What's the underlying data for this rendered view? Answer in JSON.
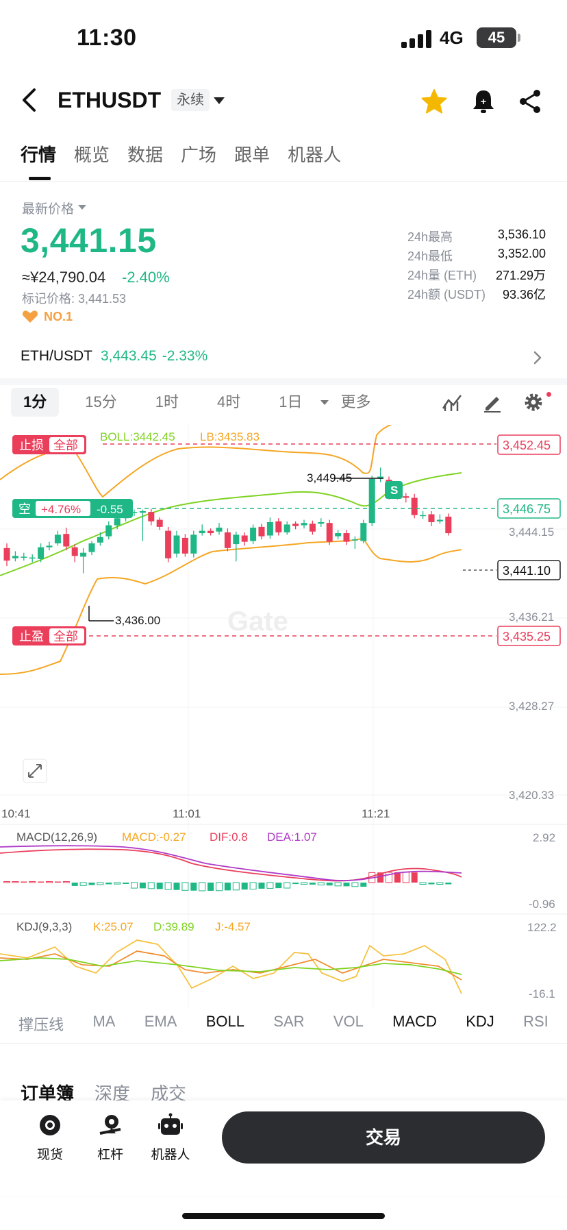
{
  "status_bar": {
    "time": "11:30",
    "network": "4G",
    "battery": "45"
  },
  "header": {
    "title": "ETHUSDT",
    "badge": "永续"
  },
  "tabs": [
    "行情",
    "概览",
    "数据",
    "广场",
    "跟单",
    "机器人"
  ],
  "price": {
    "latest_label": "最新价格",
    "last": "3,441.15",
    "cny": "≈¥24,790.04",
    "change": "-2.40%",
    "mark": "标记价格: 3,441.53",
    "rank": "NO.1"
  },
  "stats": [
    {
      "k": "24h最高",
      "v": "3,536.10"
    },
    {
      "k": "24h最低",
      "v": "3,352.00"
    },
    {
      "k": "24h量 (ETH)",
      "v": "271.29万"
    },
    {
      "k": "24h额 (USDT)",
      "v": "93.36亿"
    }
  ],
  "spot": {
    "name": "ETH/USDT",
    "price": "3,443.45",
    "change": "-2.33%"
  },
  "intervals": [
    "1分",
    "15分",
    "1时",
    "4时",
    "1日",
    "更多"
  ],
  "colors": {
    "up": "#1fb785",
    "down": "#ea3e5b",
    "boll_mid": "#7ed321",
    "boll_band": "#f5a623"
  },
  "chart": {
    "stop_loss_label": "止损",
    "take_profit_label": "止盈",
    "all_label": "全部",
    "boll_label": "BOLL:3442.45",
    "lb_label": "LB:3435.83",
    "short_label": "空",
    "short_pct": "+4.76%",
    "short_pnl": "-0.55",
    "sl_price": "3,452.45",
    "entry_price": "3,446.75",
    "tp_price": "3,435.25",
    "current_price": "3,441.10",
    "high_marker": "3,449.45",
    "low_marker": "3,436.00",
    "sell_marker": "S",
    "y_ticks": [
      "3,444.15",
      "3,436.21",
      "3,428.27",
      "3,420.33"
    ],
    "x_ticks": [
      "10:41",
      "11:01",
      "11:21"
    ],
    "watermark": "Gate"
  },
  "chart_data": {
    "type": "candlestick",
    "ylim": [
      3420.33,
      3452.45
    ],
    "candles": [
      {
        "o": 3439.2,
        "c": 3437.6,
        "h": 3439.8,
        "l": 3436.9
      },
      {
        "o": 3437.9,
        "c": 3438.2,
        "h": 3438.8,
        "l": 3437.5
      },
      {
        "o": 3438.0,
        "c": 3438.1,
        "h": 3438.6,
        "l": 3437.6
      },
      {
        "o": 3437.9,
        "c": 3438.0,
        "h": 3438.4,
        "l": 3437.4
      },
      {
        "o": 3437.8,
        "c": 3439.3,
        "h": 3439.8,
        "l": 3437.4
      },
      {
        "o": 3439.3,
        "c": 3439.5,
        "h": 3440.0,
        "l": 3438.9
      },
      {
        "o": 3439.8,
        "c": 3440.9,
        "h": 3441.4,
        "l": 3439.5
      },
      {
        "o": 3441.0,
        "c": 3439.4,
        "h": 3441.8,
        "l": 3438.9
      },
      {
        "o": 3439.3,
        "c": 3438.2,
        "h": 3439.7,
        "l": 3437.4
      },
      {
        "o": 3438.1,
        "c": 3438.6,
        "h": 3439.2,
        "l": 3436.0
      },
      {
        "o": 3438.7,
        "c": 3439.8,
        "h": 3440.1,
        "l": 3438.3
      },
      {
        "o": 3439.9,
        "c": 3440.6,
        "h": 3441.2,
        "l": 3439.5
      },
      {
        "o": 3440.7,
        "c": 3442.1,
        "h": 3442.6,
        "l": 3440.3
      },
      {
        "o": 3442.1,
        "c": 3443.0,
        "h": 3443.5,
        "l": 3441.6
      },
      {
        "o": 3443.0,
        "c": 3443.6,
        "h": 3444.0,
        "l": 3442.6
      },
      {
        "o": 3443.7,
        "c": 3443.8,
        "h": 3444.1,
        "l": 3443.3
      },
      {
        "o": 3443.7,
        "c": 3443.9,
        "h": 3444.1,
        "l": 3440.1
      },
      {
        "o": 3443.8,
        "c": 3442.6,
        "h": 3444.2,
        "l": 3442.1
      },
      {
        "o": 3442.8,
        "c": 3441.9,
        "h": 3443.1,
        "l": 3441.5
      },
      {
        "o": 3441.4,
        "c": 3437.9,
        "h": 3441.9,
        "l": 3437.4
      },
      {
        "o": 3438.5,
        "c": 3440.8,
        "h": 3441.4,
        "l": 3438.0
      },
      {
        "o": 3440.5,
        "c": 3438.5,
        "h": 3441.0,
        "l": 3438.1
      },
      {
        "o": 3438.5,
        "c": 3440.9,
        "h": 3441.4,
        "l": 3438.0
      },
      {
        "o": 3441.1,
        "c": 3441.4,
        "h": 3442.2,
        "l": 3440.8
      },
      {
        "o": 3441.4,
        "c": 3441.1,
        "h": 3441.7,
        "l": 3440.8
      },
      {
        "o": 3441.3,
        "c": 3441.8,
        "h": 3442.4,
        "l": 3440.9
      },
      {
        "o": 3441.2,
        "c": 3439.2,
        "h": 3441.7,
        "l": 3438.8
      },
      {
        "o": 3439.7,
        "c": 3440.9,
        "h": 3441.3,
        "l": 3437.5
      },
      {
        "o": 3440.8,
        "c": 3440.0,
        "h": 3441.2,
        "l": 3439.5
      },
      {
        "o": 3440.1,
        "c": 3441.8,
        "h": 3442.2,
        "l": 3439.7
      },
      {
        "o": 3441.9,
        "c": 3440.7,
        "h": 3442.3,
        "l": 3440.3
      },
      {
        "o": 3440.8,
        "c": 3442.5,
        "h": 3443.1,
        "l": 3440.4
      },
      {
        "o": 3442.6,
        "c": 3441.2,
        "h": 3443.0,
        "l": 3440.8
      },
      {
        "o": 3441.2,
        "c": 3442.2,
        "h": 3442.6,
        "l": 3440.9
      },
      {
        "o": 3442.3,
        "c": 3442.0,
        "h": 3442.6,
        "l": 3441.6
      },
      {
        "o": 3442.1,
        "c": 3442.4,
        "h": 3442.8,
        "l": 3441.7
      },
      {
        "o": 3442.3,
        "c": 3441.3,
        "h": 3442.7,
        "l": 3440.9
      },
      {
        "o": 3442.3,
        "c": 3442.5,
        "h": 3443.0,
        "l": 3441.9
      },
      {
        "o": 3442.4,
        "c": 3440.0,
        "h": 3442.8,
        "l": 3439.6
      },
      {
        "o": 3440.7,
        "c": 3441.1,
        "h": 3441.5,
        "l": 3440.3
      },
      {
        "o": 3441.1,
        "c": 3440.0,
        "h": 3441.5,
        "l": 3439.6
      },
      {
        "o": 3440.2,
        "c": 3440.3,
        "h": 3440.7,
        "l": 3439.1
      },
      {
        "o": 3440.1,
        "c": 3442.4,
        "h": 3442.8,
        "l": 3439.8
      },
      {
        "o": 3442.4,
        "c": 3448.0,
        "h": 3448.4,
        "l": 3442.0
      },
      {
        "o": 3448.1,
        "c": 3448.3,
        "h": 3449.45,
        "l": 3447.6
      },
      {
        "o": 3447.9,
        "c": 3445.8,
        "h": 3448.3,
        "l": 3445.4
      },
      {
        "o": 3445.9,
        "c": 3445.8,
        "h": 3446.3,
        "l": 3445.4
      },
      {
        "o": 3445.8,
        "c": 3445.6,
        "h": 3446.2,
        "l": 3445.0
      },
      {
        "o": 3445.6,
        "c": 3443.4,
        "h": 3446.1,
        "l": 3443.0
      },
      {
        "o": 3443.3,
        "c": 3443.4,
        "h": 3443.9,
        "l": 3442.9
      },
      {
        "o": 3443.5,
        "c": 3442.5,
        "h": 3443.9,
        "l": 3442.0
      },
      {
        "o": 3442.6,
        "c": 3442.8,
        "h": 3443.5,
        "l": 3442.3
      },
      {
        "o": 3443.2,
        "c": 3441.1,
        "h": 3443.6,
        "l": 3440.8
      }
    ]
  },
  "macd": {
    "label": "MACD(12,26,9)",
    "macd": "MACD:-0.27",
    "dif": "DIF:0.8",
    "dea": "DEA:1.07",
    "top": "2.92",
    "bottom": "-0.96"
  },
  "kdj": {
    "label": "KDJ(9,3,3)",
    "k": "K:25.07",
    "d": "D:39.89",
    "j": "J:-4.57",
    "top": "122.2",
    "bottom": "-16.1"
  },
  "indicators": [
    "撑压线",
    "MA",
    "EMA",
    "BOLL",
    "SAR",
    "VOL",
    "MACD",
    "KDJ",
    "RSI"
  ],
  "indicators_on": [
    "BOLL",
    "MACD",
    "KDJ"
  ],
  "orderbook_tabs": [
    "订单簿",
    "深度",
    "成交"
  ],
  "bottom": {
    "spot": "现货",
    "margin": "杠杆",
    "bot": "机器人",
    "trade": "交易"
  }
}
